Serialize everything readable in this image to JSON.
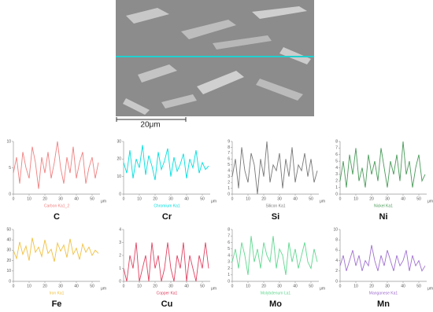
{
  "image": {
    "scale_label": "20μm"
  },
  "chart_data": [
    {
      "type": "line",
      "title": "C",
      "xlabel": "μm",
      "x": [
        0,
        2,
        4,
        6,
        8,
        10,
        12,
        14,
        16,
        18,
        20,
        22,
        24,
        26,
        28,
        30,
        32,
        34,
        36,
        38,
        40,
        42,
        44,
        46,
        48,
        50,
        52,
        54
      ],
      "xlim": [
        0,
        55
      ],
      "xticks": [
        0,
        10,
        20,
        30,
        40,
        50
      ],
      "ylim": [
        0,
        10
      ],
      "yticks": [
        0,
        5,
        10
      ],
      "series": [
        {
          "name": "Carbon Ka1_2",
          "color": "#f08080",
          "values": [
            4,
            7,
            2,
            8,
            5,
            3,
            9,
            6,
            1,
            7,
            4,
            8,
            3,
            6,
            10,
            5,
            2,
            7,
            4,
            9,
            3,
            6,
            8,
            2,
            5,
            7,
            3,
            6
          ]
        }
      ]
    },
    {
      "type": "line",
      "title": "Cr",
      "xlabel": "μm",
      "x": [
        0,
        2,
        4,
        6,
        8,
        10,
        12,
        14,
        16,
        18,
        20,
        22,
        24,
        26,
        28,
        30,
        32,
        34,
        36,
        38,
        40,
        42,
        44,
        46,
        48,
        50,
        52,
        54
      ],
      "xlim": [
        0,
        55
      ],
      "xticks": [
        0,
        10,
        20,
        30,
        40,
        50
      ],
      "ylim": [
        0,
        30
      ],
      "yticks": [
        0,
        10,
        20,
        30
      ],
      "series": [
        {
          "name": "Chromium Ka1",
          "color": "#00dede",
          "values": [
            18,
            12,
            25,
            9,
            20,
            15,
            28,
            11,
            22,
            16,
            8,
            24,
            14,
            19,
            26,
            10,
            21,
            13,
            17,
            23,
            9,
            20,
            15,
            25,
            12,
            18,
            14,
            16
          ]
        }
      ]
    },
    {
      "type": "line",
      "title": "Si",
      "xlabel": "μm",
      "x": [
        0,
        2,
        4,
        6,
        8,
        10,
        12,
        14,
        16,
        18,
        20,
        22,
        24,
        26,
        28,
        30,
        32,
        34,
        36,
        38,
        40,
        42,
        44,
        46,
        48,
        50,
        52,
        54
      ],
      "xlim": [
        0,
        55
      ],
      "xticks": [
        0,
        10,
        20,
        30,
        40,
        50
      ],
      "ylim": [
        0,
        9
      ],
      "yticks": [
        0,
        1,
        2,
        3,
        4,
        5,
        6,
        7,
        8,
        9
      ],
      "series": [
        {
          "name": "Silicon Ka1",
          "color": "#777777",
          "values": [
            3,
            6,
            1,
            8,
            4,
            2,
            7,
            5,
            0,
            6,
            3,
            9,
            2,
            5,
            4,
            7,
            1,
            6,
            3,
            8,
            2,
            5,
            4,
            7,
            3,
            6,
            2,
            4
          ]
        }
      ]
    },
    {
      "type": "line",
      "title": "Ni",
      "xlabel": "μm",
      "x": [
        0,
        2,
        4,
        6,
        8,
        10,
        12,
        14,
        16,
        18,
        20,
        22,
        24,
        26,
        28,
        30,
        32,
        34,
        36,
        38,
        40,
        42,
        44,
        46,
        48,
        50,
        52,
        54
      ],
      "xlim": [
        0,
        55
      ],
      "xticks": [
        0,
        10,
        20,
        30,
        40,
        50
      ],
      "ylim": [
        0,
        8
      ],
      "yticks": [
        0,
        1,
        2,
        3,
        4,
        5,
        6,
        7,
        8
      ],
      "series": [
        {
          "name": "Nickel Ka1",
          "color": "#4a9a5a",
          "values": [
            2,
            5,
            1,
            6,
            3,
            7,
            2,
            4,
            1,
            6,
            3,
            5,
            2,
            7,
            4,
            1,
            5,
            3,
            6,
            2,
            8,
            3,
            5,
            1,
            4,
            6,
            2,
            3
          ]
        }
      ]
    },
    {
      "type": "line",
      "title": "Fe",
      "xlabel": "μm",
      "x": [
        0,
        2,
        4,
        6,
        8,
        10,
        12,
        14,
        16,
        18,
        20,
        22,
        24,
        26,
        28,
        30,
        32,
        34,
        36,
        38,
        40,
        42,
        44,
        46,
        48,
        50,
        52,
        54
      ],
      "xlim": [
        0,
        55
      ],
      "xticks": [
        0,
        10,
        20,
        30,
        40,
        50
      ],
      "ylim": [
        0,
        50
      ],
      "yticks": [
        0,
        10,
        20,
        30,
        40,
        50
      ],
      "series": [
        {
          "name": "Iron Ka1",
          "color": "#f0c040",
          "values": [
            30,
            22,
            38,
            26,
            34,
            20,
            42,
            28,
            33,
            24,
            40,
            27,
            31,
            19,
            37,
            29,
            35,
            23,
            41,
            26,
            32,
            21,
            36,
            28,
            33,
            25,
            30,
            27
          ]
        }
      ]
    },
    {
      "type": "line",
      "title": "Cu",
      "xlabel": "μm",
      "x": [
        0,
        2,
        4,
        6,
        8,
        10,
        12,
        14,
        16,
        18,
        20,
        22,
        24,
        26,
        28,
        30,
        32,
        34,
        36,
        38,
        40,
        42,
        44,
        46,
        48,
        50,
        52,
        54
      ],
      "xlim": [
        0,
        55
      ],
      "xticks": [
        0,
        10,
        20,
        30,
        40,
        50
      ],
      "ylim": [
        0,
        4
      ],
      "yticks": [
        0,
        1,
        2,
        3,
        4
      ],
      "series": [
        {
          "name": "Copper Ka1",
          "color": "#e04060",
          "values": [
            1,
            0,
            2,
            1,
            3,
            0,
            1,
            2,
            0,
            3,
            1,
            2,
            0,
            1,
            3,
            1,
            0,
            2,
            1,
            3,
            0,
            2,
            1,
            0,
            2,
            1,
            3,
            1
          ]
        }
      ]
    },
    {
      "type": "line",
      "title": "Mo",
      "xlabel": "μm",
      "x": [
        0,
        2,
        4,
        6,
        8,
        10,
        12,
        14,
        16,
        18,
        20,
        22,
        24,
        26,
        28,
        30,
        32,
        34,
        36,
        38,
        40,
        42,
        44,
        46,
        48,
        50,
        52,
        54
      ],
      "xlim": [
        0,
        55
      ],
      "xticks": [
        0,
        10,
        20,
        30,
        40,
        50
      ],
      "ylim": [
        0,
        8
      ],
      "yticks": [
        0,
        1,
        2,
        3,
        4,
        5,
        6,
        7,
        8
      ],
      "series": [
        {
          "name": "Molybdenum La1",
          "color": "#60d890",
          "values": [
            3,
            5,
            2,
            6,
            4,
            1,
            7,
            3,
            5,
            2,
            6,
            4,
            3,
            7,
            2,
            5,
            4,
            1,
            6,
            3,
            5,
            2,
            4,
            6,
            3,
            2,
            5,
            3
          ]
        }
      ]
    },
    {
      "type": "line",
      "title": "Mn",
      "xlabel": "μm",
      "x": [
        0,
        2,
        4,
        6,
        8,
        10,
        12,
        14,
        16,
        18,
        20,
        22,
        24,
        26,
        28,
        30,
        32,
        34,
        36,
        38,
        40,
        42,
        44,
        46,
        48,
        50,
        52,
        54
      ],
      "xlim": [
        0,
        55
      ],
      "xticks": [
        0,
        10,
        20,
        30,
        40,
        50
      ],
      "ylim": [
        0,
        10
      ],
      "yticks": [
        0,
        2,
        4,
        6,
        8,
        10
      ],
      "series": [
        {
          "name": "Manganese Ka1",
          "color": "#a070d0",
          "values": [
            3,
            5,
            2,
            4,
            6,
            3,
            5,
            2,
            4,
            3,
            7,
            4,
            2,
            5,
            3,
            6,
            4,
            2,
            5,
            3,
            4,
            6,
            2,
            5,
            3,
            4,
            2,
            3
          ]
        }
      ]
    }
  ]
}
